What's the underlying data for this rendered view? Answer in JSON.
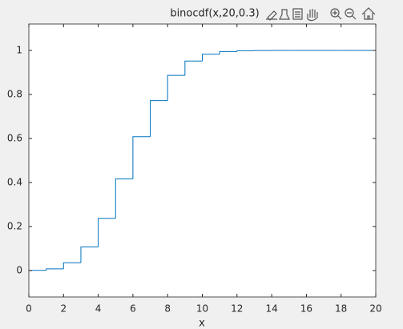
{
  "chart_data": {
    "type": "stairs",
    "title": "binocdf(x,20,0.3)",
    "x_label": "x",
    "series": [
      {
        "name": "binocdf",
        "color": "#0072bd",
        "x": [
          0,
          1,
          2,
          3,
          4,
          5,
          6,
          7,
          8,
          9,
          10,
          11,
          12,
          13,
          14,
          15,
          16,
          17,
          18,
          19,
          20
        ],
        "values": [
          0.0008,
          0.0076,
          0.0355,
          0.1071,
          0.2375,
          0.4164,
          0.608,
          0.7723,
          0.8867,
          0.952,
          0.9829,
          0.9949,
          0.9987,
          0.9997,
          1.0,
          1.0,
          1.0,
          1.0,
          1.0,
          1.0,
          1.0
        ]
      }
    ],
    "xlim": [
      0,
      20
    ],
    "xticks": [
      0,
      2,
      4,
      6,
      8,
      10,
      12,
      14,
      16,
      18,
      20
    ],
    "ylim": [
      -0.12,
      1.12
    ],
    "yticks": [
      0,
      0.2,
      0.4,
      0.6,
      0.8,
      1
    ],
    "box": true
  }
}
